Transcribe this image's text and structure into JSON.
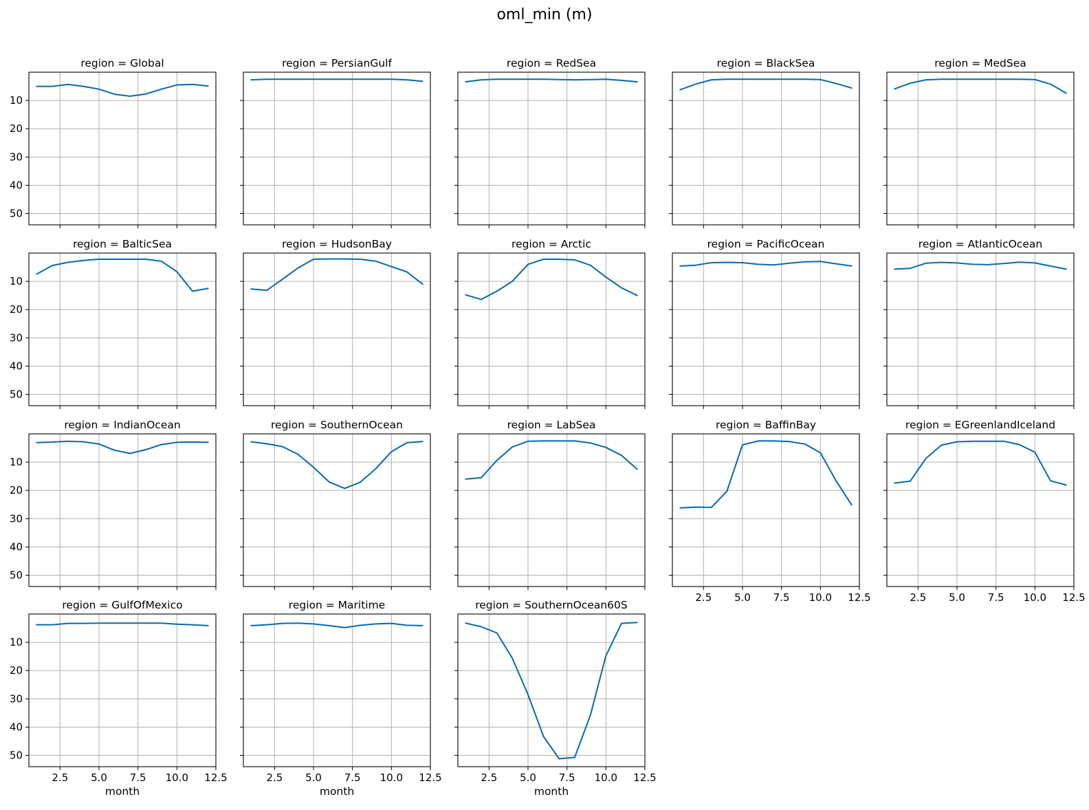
{
  "chart_data": {
    "type": "line",
    "title": "oml_min (m)",
    "xlabel": "month",
    "x": [
      1,
      2,
      3,
      4,
      5,
      6,
      7,
      8,
      9,
      10,
      11,
      12
    ],
    "xlim": [
      0.5,
      12.5
    ],
    "ylim": [
      54,
      0
    ],
    "y_inverted": true,
    "xticks": [
      2.5,
      5.0,
      7.5,
      10.0,
      12.5
    ],
    "xtick_labels": [
      "2.5",
      "5.0",
      "7.5",
      "10.0",
      "12.5"
    ],
    "yticks": [
      10,
      20,
      30,
      40,
      50
    ],
    "ytick_labels": [
      "10",
      "20",
      "30",
      "40",
      "50"
    ],
    "grid": true,
    "line_color": "#0868ac",
    "panels": [
      {
        "title": "region = Global",
        "values": [
          5.0,
          5.0,
          4.3,
          5.0,
          6.0,
          7.8,
          8.5,
          7.7,
          6.0,
          4.5,
          4.3,
          4.9
        ]
      },
      {
        "title": "region = PersianGulf",
        "values": [
          2.7,
          2.5,
          2.5,
          2.5,
          2.5,
          2.5,
          2.5,
          2.5,
          2.5,
          2.5,
          2.7,
          3.2
        ]
      },
      {
        "title": "region = RedSea",
        "values": [
          3.4,
          2.7,
          2.5,
          2.5,
          2.5,
          2.5,
          2.6,
          2.7,
          2.6,
          2.5,
          2.9,
          3.4
        ]
      },
      {
        "title": "region = BlackSea",
        "values": [
          6.2,
          4.2,
          2.7,
          2.5,
          2.5,
          2.5,
          2.5,
          2.5,
          2.5,
          2.6,
          4.0,
          5.6
        ]
      },
      {
        "title": "region = MedSea",
        "values": [
          5.9,
          3.9,
          2.7,
          2.5,
          2.5,
          2.5,
          2.5,
          2.5,
          2.5,
          2.6,
          4.2,
          7.4
        ]
      },
      {
        "title": "region = BalticSea",
        "values": [
          7.5,
          4.4,
          3.3,
          2.6,
          2.2,
          2.2,
          2.2,
          2.2,
          2.9,
          6.6,
          13.5,
          12.5
        ]
      },
      {
        "title": "region = HudsonBay",
        "values": [
          12.7,
          13.2,
          9.3,
          5.3,
          2.2,
          2.1,
          2.1,
          2.2,
          2.9,
          4.8,
          6.7,
          11.0
        ]
      },
      {
        "title": "region = Arctic",
        "values": [
          14.8,
          16.4,
          13.5,
          10.0,
          4.0,
          2.2,
          2.2,
          2.4,
          4.3,
          8.5,
          12.3,
          15.0
        ]
      },
      {
        "title": "region = PacificOcean",
        "values": [
          4.6,
          4.3,
          3.4,
          3.3,
          3.4,
          4.0,
          4.2,
          3.6,
          3.1,
          3.0,
          3.8,
          4.6
        ]
      },
      {
        "title": "region = AtlanticOcean",
        "values": [
          5.7,
          5.4,
          3.6,
          3.3,
          3.5,
          4.0,
          4.1,
          3.7,
          3.2,
          3.5,
          4.6,
          5.7
        ]
      },
      {
        "title": "region = IndianOcean",
        "values": [
          3.1,
          2.9,
          2.6,
          2.8,
          3.6,
          5.8,
          6.9,
          5.6,
          3.8,
          3.0,
          2.9,
          3.0
        ]
      },
      {
        "title": "region = SouthernOcean",
        "values": [
          2.8,
          3.5,
          4.5,
          7.2,
          11.8,
          17.0,
          19.3,
          17.1,
          12.3,
          6.3,
          3.1,
          2.7
        ]
      },
      {
        "title": "region = LabSea",
        "values": [
          16.0,
          15.5,
          9.4,
          4.6,
          2.6,
          2.5,
          2.5,
          2.5,
          3.2,
          4.8,
          7.6,
          12.5
        ]
      },
      {
        "title": "region = BaffinBay",
        "values": [
          26.2,
          25.9,
          26.0,
          20.3,
          3.9,
          2.5,
          2.5,
          2.7,
          3.6,
          6.7,
          16.6,
          25.1
        ]
      },
      {
        "title": "region = EGreenlandIceland",
        "values": [
          17.4,
          16.7,
          8.7,
          4.0,
          2.8,
          2.6,
          2.6,
          2.6,
          3.8,
          6.5,
          16.6,
          18.1
        ]
      },
      {
        "title": "region = GulfOfMexico",
        "values": [
          3.8,
          3.8,
          3.3,
          3.3,
          3.2,
          3.2,
          3.2,
          3.2,
          3.2,
          3.6,
          3.8,
          4.1
        ]
      },
      {
        "title": "region = Maritime",
        "values": [
          4.1,
          3.8,
          3.3,
          3.2,
          3.5,
          4.1,
          4.8,
          4.0,
          3.5,
          3.3,
          4.0,
          4.1
        ]
      },
      {
        "title": "region = SouthernOcean60S",
        "values": [
          3.2,
          4.5,
          6.7,
          15.7,
          28.5,
          43.4,
          51.2,
          50.7,
          35.8,
          14.8,
          3.3,
          3.0
        ]
      }
    ]
  }
}
